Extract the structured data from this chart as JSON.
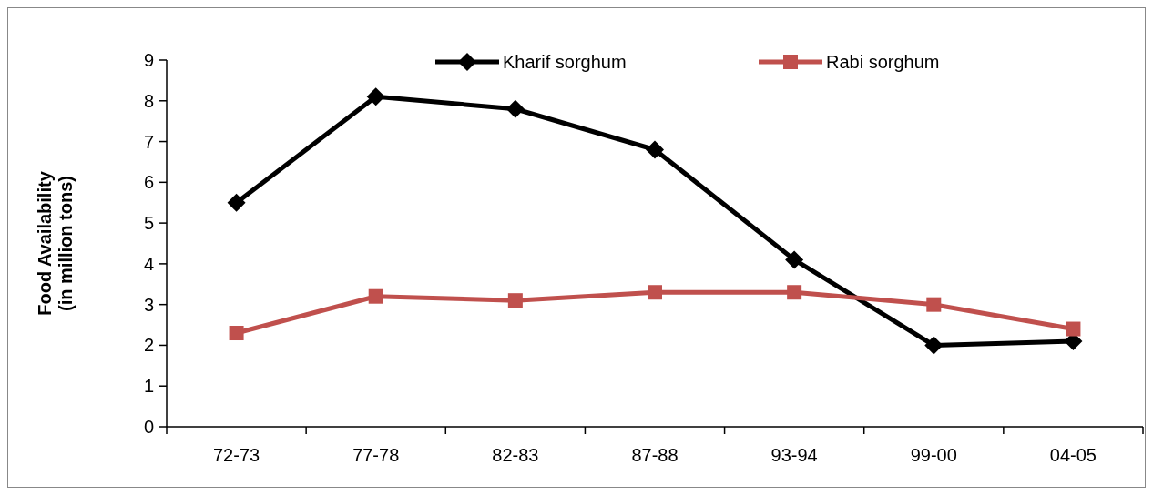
{
  "chart_data": {
    "type": "line",
    "ylabel": "Food Availability\n(in million tons)",
    "categories": [
      "72-73",
      "77-78",
      "82-83",
      "87-88",
      "93-94",
      "99-00",
      "04-05"
    ],
    "series": [
      {
        "name": "Kharif sorghum",
        "color": "#000000",
        "marker": "diamond",
        "values": [
          5.5,
          8.1,
          7.8,
          6.8,
          4.1,
          2.0,
          2.1
        ]
      },
      {
        "name": "Rabi sorghum",
        "color": "#c0504d",
        "marker": "square",
        "values": [
          2.3,
          3.2,
          3.1,
          3.3,
          3.3,
          3.0,
          2.4
        ]
      }
    ],
    "ylim": [
      0,
      9
    ],
    "yticks": [
      0,
      1,
      2,
      3,
      4,
      5,
      6,
      7,
      8,
      9
    ],
    "grid": false,
    "legend": "top",
    "line_style": "solid"
  }
}
